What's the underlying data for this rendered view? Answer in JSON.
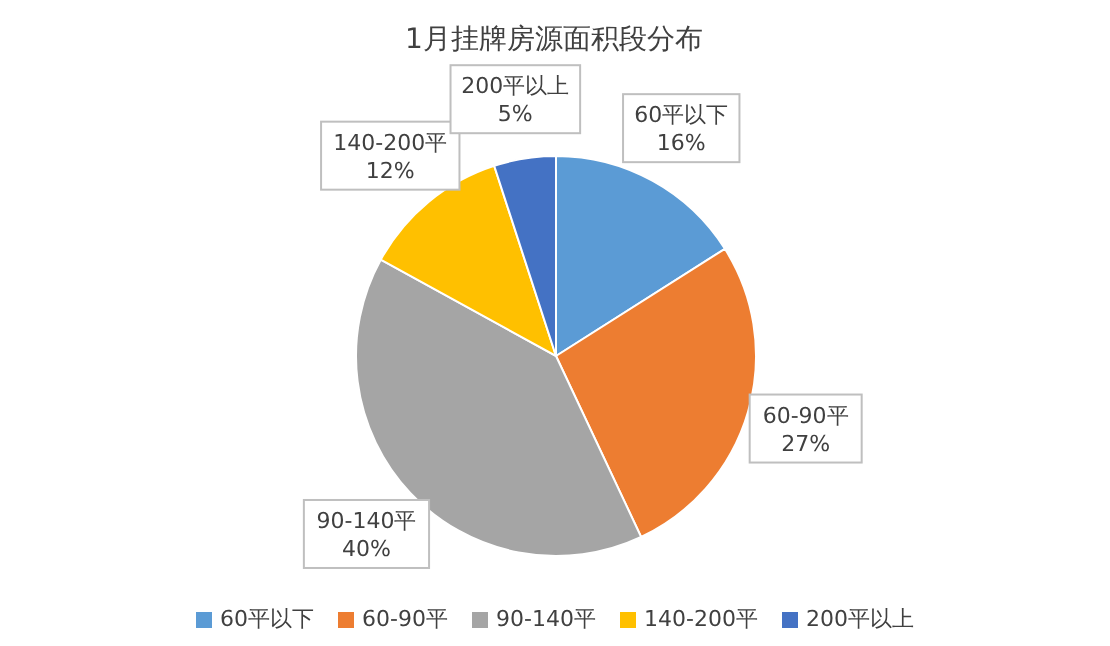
{
  "chart_data": {
    "type": "pie",
    "title": "1月挂牌房源面积段分布",
    "categories": [
      "60平以下",
      "60-90平",
      "90-140平",
      "140-200平",
      "200平以上"
    ],
    "values": [
      16,
      27,
      40,
      12,
      5
    ],
    "value_labels": [
      "16%",
      "27%",
      "40%",
      "12%",
      "5%"
    ],
    "colors": [
      "#5b9bd5",
      "#ed7d31",
      "#a5a5a5",
      "#ffc000",
      "#4472c4"
    ],
    "legend": "bottom"
  }
}
